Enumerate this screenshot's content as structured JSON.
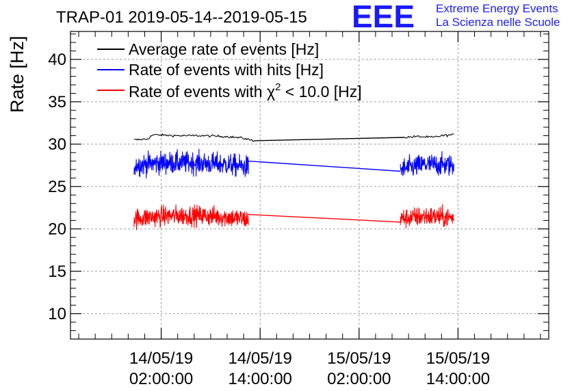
{
  "page_title": "TRAP-01 2019-05-14--2019-05-15",
  "brand": {
    "logo_text": "EEE",
    "line1": "Extreme Energy Events",
    "line2": "La Scienza nelle Scuole",
    "color": "#1a1aff"
  },
  "chart_data": {
    "type": "line",
    "title": "TRAP-01 2019-05-14--2019-05-15",
    "xlabel": "",
    "ylabel": "Rate [Hz]",
    "x_unit": "hours since 2019-05-14 00:00:00",
    "xlim": [
      -9.0,
      49.0
    ],
    "ylim": [
      7.0,
      43.3
    ],
    "y_ticks": [
      10,
      15,
      20,
      25,
      30,
      35,
      40
    ],
    "x_ticks": [
      {
        "x": 2,
        "date": "14/05/19",
        "time": "02:00:00"
      },
      {
        "x": 14,
        "date": "14/05/19",
        "time": "14:00:00"
      },
      {
        "x": 26,
        "date": "15/05/19",
        "time": "02:00:00"
      },
      {
        "x": 38,
        "date": "15/05/19",
        "time": "14:00:00"
      }
    ],
    "grid": true,
    "legend_position": "top-left",
    "series": [
      {
        "name": "Average rate of events [Hz]",
        "legend_prefix": "Average rate of events [Hz]",
        "legend_suffix": "",
        "color": "#000000",
        "noise": 0.12,
        "segments": [
          {
            "x": [
              -1.3,
              0.3,
              1.0,
              4.0,
              7.0,
              10.0,
              12.0,
              13.2
            ],
            "y": [
              30.5,
              30.6,
              31.1,
              31.0,
              31.0,
              30.9,
              30.7,
              30.4
            ]
          },
          {
            "x": [
              13.2,
              31.5
            ],
            "y": [
              30.4,
              30.8
            ]
          },
          {
            "x": [
              31.5,
              33.0,
              35.0,
              36.0,
              37.5
            ],
            "y": [
              30.8,
              30.9,
              30.8,
              31.0,
              31.1
            ]
          }
        ]
      },
      {
        "name": "Rate of events with hits [Hz]",
        "legend_prefix": "Rate of events with hits [Hz]",
        "legend_suffix": "",
        "color": "#0000ff",
        "noise": 1.1,
        "segments": [
          {
            "x": [
              -1.3,
              2.0,
              6.0,
              10.0,
              12.6
            ],
            "y": [
              27.5,
              27.8,
              27.8,
              27.6,
              27.3
            ]
          },
          {
            "x": [
              12.6,
              31.0
            ],
            "y": [
              28.0,
              26.8
            ]
          },
          {
            "x": [
              31.0,
              34.0,
              37.5
            ],
            "y": [
              27.0,
              27.6,
              27.5
            ]
          }
        ]
      },
      {
        "name": "Rate of events with chi2 < 10.0 [Hz]",
        "legend_prefix": "Rate of events with ",
        "legend_chi": "χ",
        "legend_sup": "2",
        "legend_suffix": " < 10.0 [Hz]",
        "color": "#ff0000",
        "noise": 1.0,
        "segments": [
          {
            "x": [
              -1.3,
              2.0,
              6.0,
              10.0,
              12.6
            ],
            "y": [
              21.2,
              21.5,
              21.6,
              21.4,
              21.1
            ]
          },
          {
            "x": [
              12.6,
              31.0
            ],
            "y": [
              21.7,
              20.8
            ]
          },
          {
            "x": [
              31.0,
              34.0,
              37.5
            ],
            "y": [
              21.2,
              21.5,
              21.3
            ]
          }
        ]
      }
    ]
  }
}
